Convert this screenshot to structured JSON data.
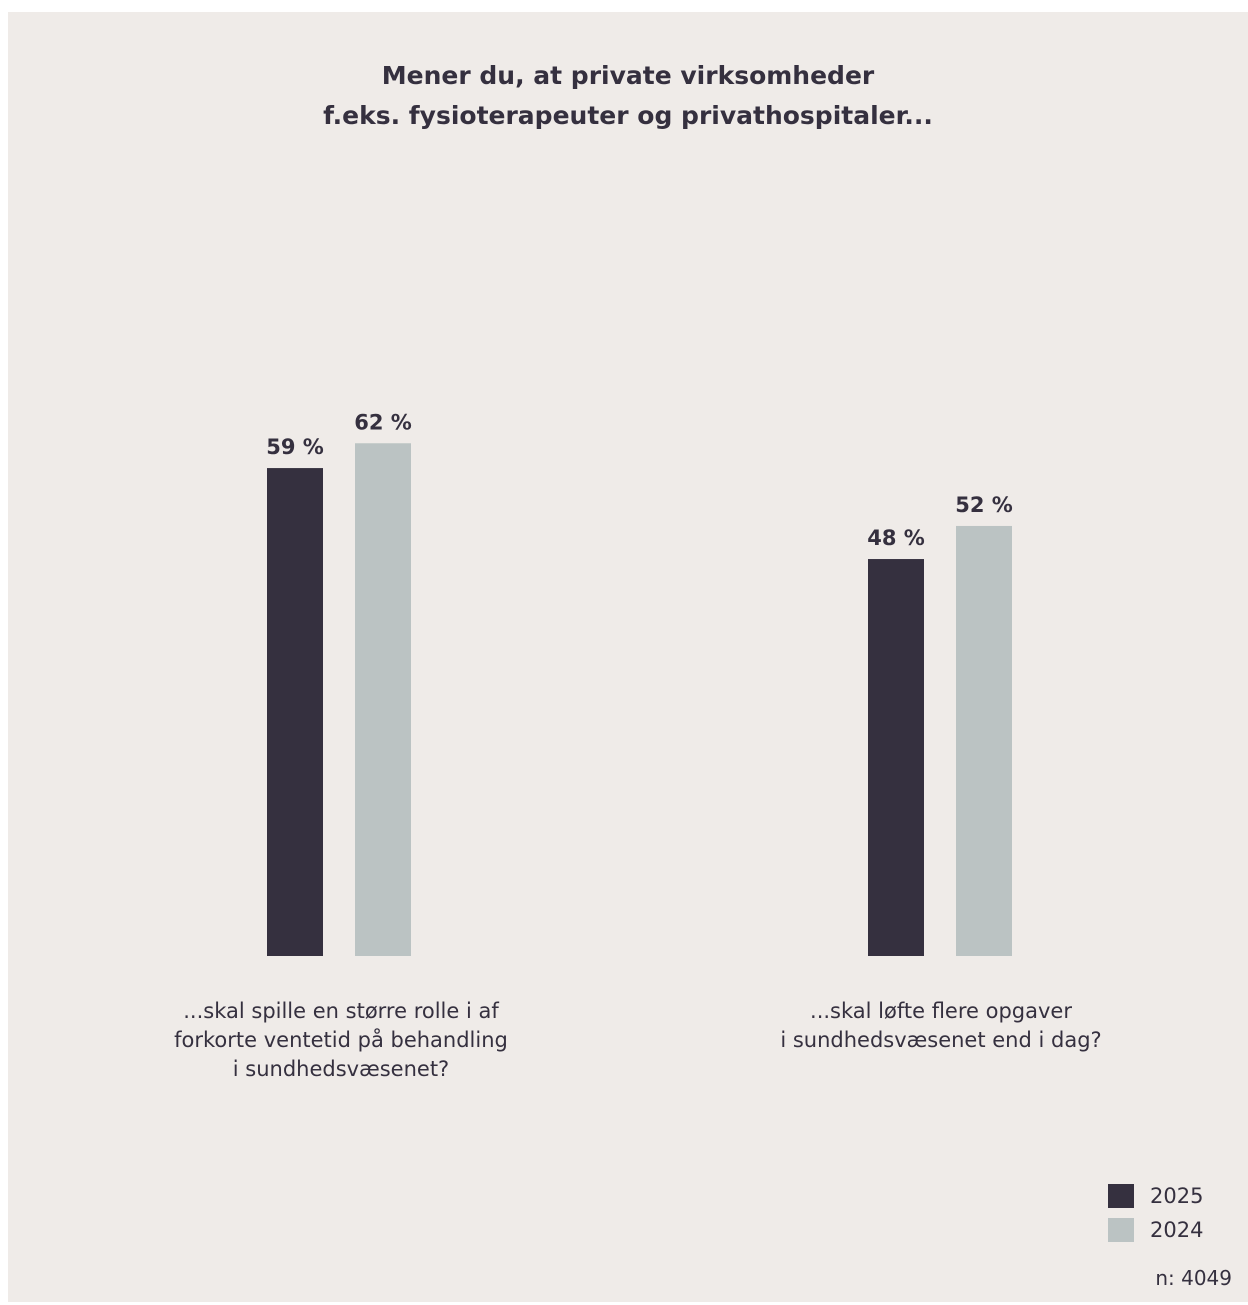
{
  "chart_data": {
    "type": "bar",
    "title": [
      "Mener du, at private virksomheder",
      "f.eks. fysioterapeuter og privathospitaler..."
    ],
    "categories": [
      "...skal spille en større rolle i af\nforkorte ventetid på behandling\ni sundhedsvæsenet?",
      "...skal løfte flere opgaver\ni sundhedsvæsenet end i dag?"
    ],
    "series": [
      {
        "name": "2025",
        "values": [
          59,
          48
        ],
        "labels": [
          "59 %",
          "48 %"
        ],
        "color": "#35303f"
      },
      {
        "name": "2024",
        "values": [
          62,
          52
        ],
        "labels": [
          "62 %",
          "52 %"
        ],
        "color": "#bbc3c3"
      }
    ],
    "ylim": [
      0,
      100
    ],
    "grid": false,
    "legend_position": "bottom-right",
    "note": "n: 4049"
  }
}
